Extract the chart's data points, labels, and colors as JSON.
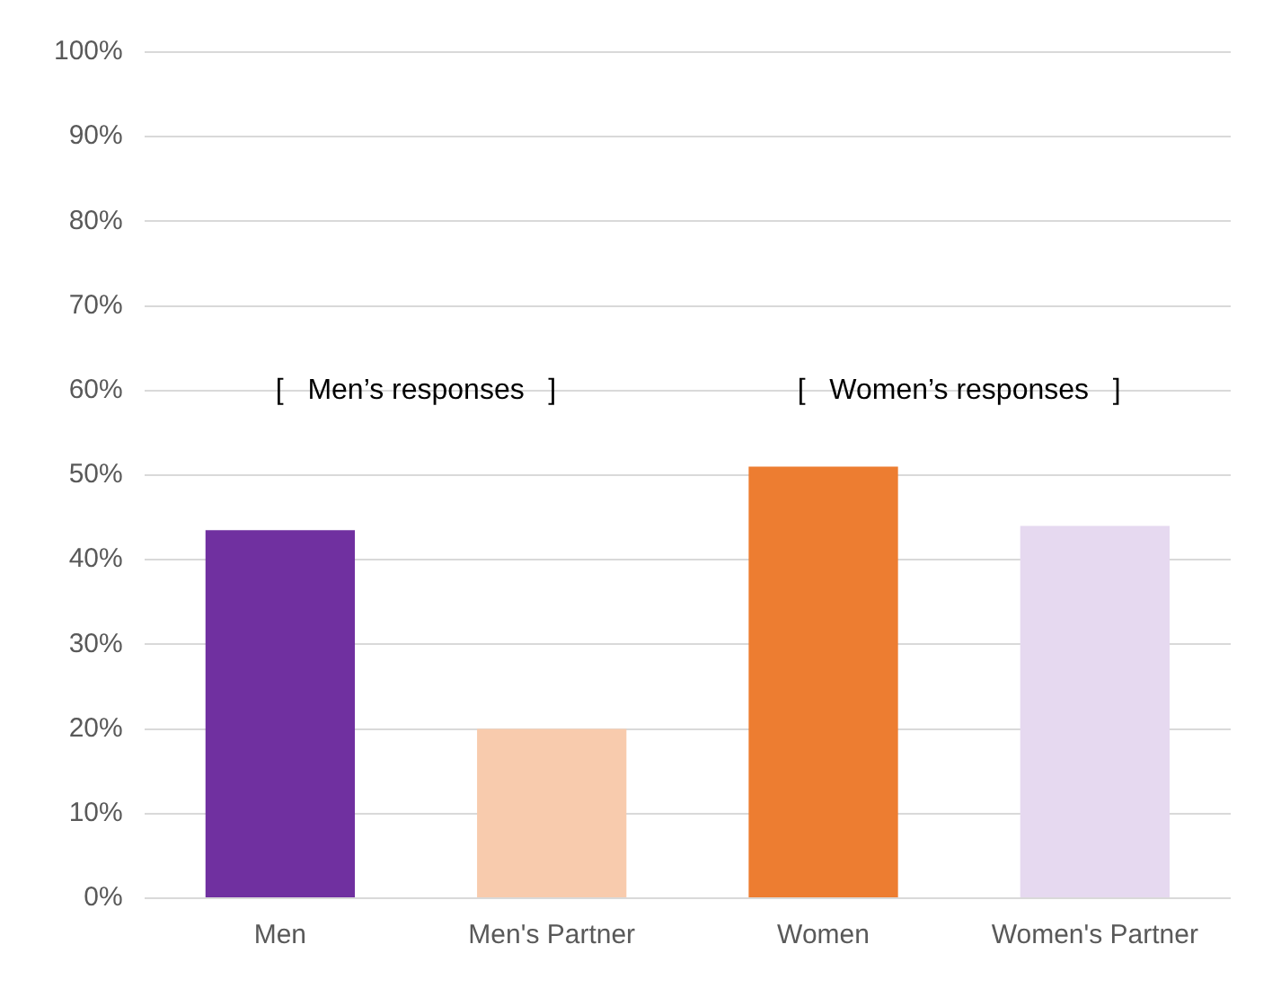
{
  "chart_data": {
    "type": "bar",
    "categories": [
      "Men",
      "Men's Partner",
      "Women",
      "Women's Partner"
    ],
    "values": [
      43.5,
      20,
      51,
      44
    ],
    "colors": [
      "#7030a0",
      "#f8cbad",
      "#ed7d31",
      "#e6d9f0"
    ],
    "ylim": [
      0,
      100
    ],
    "yticks": [
      {
        "value": 0,
        "label": "0%"
      },
      {
        "value": 10,
        "label": "10%"
      },
      {
        "value": 20,
        "label": "20%"
      },
      {
        "value": 30,
        "label": "30%"
      },
      {
        "value": 40,
        "label": "40%"
      },
      {
        "value": 50,
        "label": "50%"
      },
      {
        "value": 60,
        "label": "60%"
      },
      {
        "value": 70,
        "label": "70%"
      },
      {
        "value": 80,
        "label": "80%"
      },
      {
        "value": 90,
        "label": "90%"
      },
      {
        "value": 100,
        "label": "100%"
      }
    ],
    "grid": "y",
    "legend": false,
    "annotations": [
      "[   Men’s responses   ]",
      "[   Women’s responses   ]"
    ]
  }
}
